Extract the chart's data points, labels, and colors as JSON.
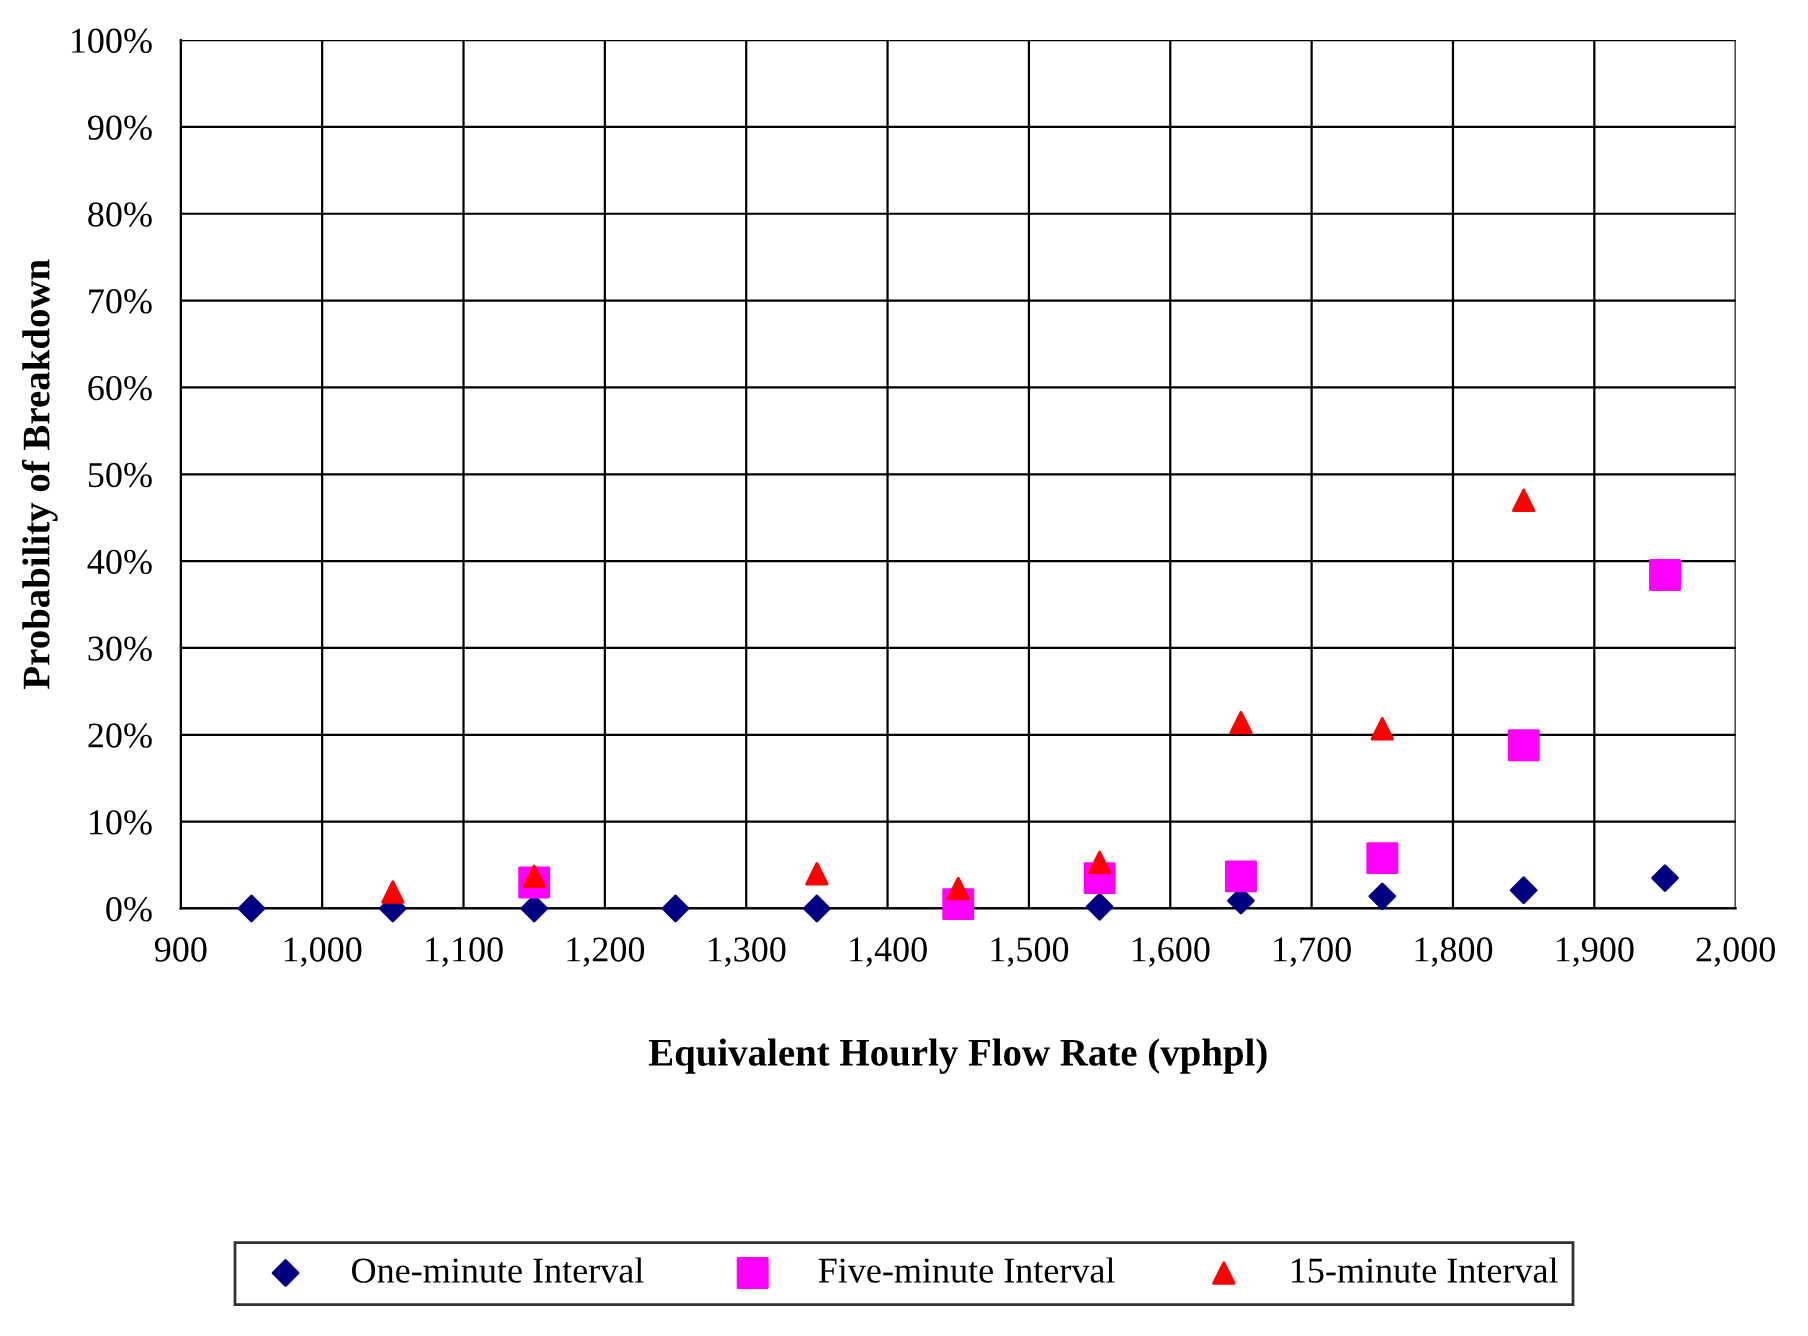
{
  "chart_data": {
    "type": "scatter",
    "xlabel": "Equivalent Hourly Flow Rate (vphpl)",
    "ylabel": "Probability of Breakdown",
    "series": [
      {
        "name": "One-minute Interval",
        "color": "#000080",
        "marker": "diamond",
        "x": [
          950,
          1050,
          1150,
          1250,
          1350,
          1550,
          1650,
          1750,
          1850,
          1950
        ],
        "values": [
          0,
          0,
          0,
          0,
          0,
          0.2,
          0.9,
          1.4,
          2.1,
          3.5
        ]
      },
      {
        "name": "Five-minute Interval",
        "color": "#ff00ff",
        "marker": "square",
        "x": [
          1150,
          1450,
          1550,
          1650,
          1750,
          1850,
          1950
        ],
        "values": [
          3,
          0.5,
          3.5,
          3.7,
          5.8,
          18.8,
          38.4
        ]
      },
      {
        "name": "15-minute Interval",
        "color": "#ff0000",
        "marker": "triangle",
        "x": [
          1050,
          1150,
          1350,
          1450,
          1550,
          1650,
          1750,
          1850
        ],
        "values": [
          1.9,
          3.7,
          4,
          2.3,
          5.3,
          21.4,
          20.7,
          47
        ]
      }
    ],
    "xlim": [
      900,
      2000
    ],
    "ylim": [
      0,
      100
    ],
    "xticks": [
      900,
      {
        "value": 1000,
        "label": "1,000"
      },
      {
        "value": 1100,
        "label": "1,100"
      },
      {
        "value": 1200,
        "label": "1,200"
      },
      {
        "value": 1300,
        "label": "1,300"
      },
      {
        "value": 1400,
        "label": "1,400"
      },
      {
        "value": 1500,
        "label": "1,500"
      },
      {
        "value": 1600,
        "label": "1,600"
      },
      {
        "value": 1700,
        "label": "1,700"
      },
      {
        "value": 1800,
        "label": "1,800"
      },
      {
        "value": 1900,
        "label": "1,900"
      },
      {
        "value": 2000,
        "label": "2,000"
      }
    ],
    "yticks": [
      {
        "value": 0,
        "label": "0%"
      },
      {
        "value": 10,
        "label": "10%"
      },
      {
        "value": 20,
        "label": "20%"
      },
      {
        "value": 30,
        "label": "30%"
      },
      {
        "value": 40,
        "label": "40%"
      },
      {
        "value": 50,
        "label": "50%"
      },
      {
        "value": 60,
        "label": "60%"
      },
      {
        "value": 70,
        "label": "70%"
      },
      {
        "value": 80,
        "label": "80%"
      },
      {
        "value": 90,
        "label": "90%"
      },
      {
        "value": 100,
        "label": "100%"
      }
    ],
    "grid": true,
    "legend": "bottom"
  }
}
